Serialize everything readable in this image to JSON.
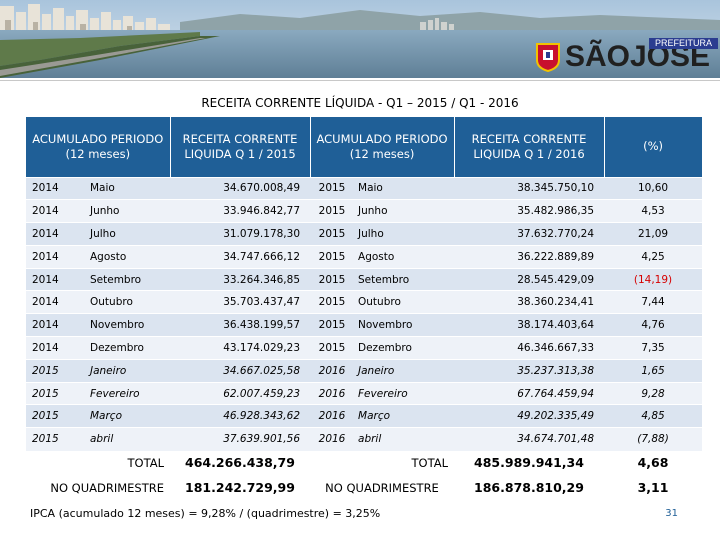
{
  "header": {
    "logo_text": "SÃOJOSÉ",
    "logo_sub": "PREFEITURA"
  },
  "title": "RECEITA CORRENTE LÍQUIDA - Q1 – 2015 / Q1 - 2016",
  "table": {
    "headers": {
      "acc1": "ACUMULADO PERIODO (12 meses)",
      "rcl1": "RECEITA CORRENTE LIQUIDA Q 1 / 2015",
      "acc2": "ACUMULADO PERIODO (12 meses)",
      "rcl2": "RECEITA CORRENTE LIQUIDA Q 1 / 2016",
      "pct": "(%)"
    },
    "rows": [
      {
        "y1": "2014",
        "m1": "Maio",
        "v1": "34.670.008,49",
        "y2": "2015",
        "m2": "Maio",
        "v2": "38.345.750,10",
        "pct": "10,60"
      },
      {
        "y1": "2014",
        "m1": "Junho",
        "v1": "33.946.842,77",
        "y2": "2015",
        "m2": "Junho",
        "v2": "35.482.986,35",
        "pct": "4,53"
      },
      {
        "y1": "2014",
        "m1": "Julho",
        "v1": "31.079.178,30",
        "y2": "2015",
        "m2": "Julho",
        "v2": "37.632.770,24",
        "pct": "21,09"
      },
      {
        "y1": "2014",
        "m1": "Agosto",
        "v1": "34.747.666,12",
        "y2": "2015",
        "m2": "Agosto",
        "v2": "36.222.889,89",
        "pct": "4,25"
      },
      {
        "y1": "2014",
        "m1": "Setembro",
        "v1": "33.264.346,85",
        "y2": "2015",
        "m2": "Setembro",
        "v2": "28.545.429,09",
        "pct": "(14,19)"
      },
      {
        "y1": "2014",
        "m1": "Outubro",
        "v1": "35.703.437,47",
        "y2": "2015",
        "m2": "Outubro",
        "v2": "38.360.234,41",
        "pct": "7,44"
      },
      {
        "y1": "2014",
        "m1": "Novembro",
        "v1": "36.438.199,57",
        "y2": "2015",
        "m2": "Novembro",
        "v2": "38.174.403,64",
        "pct": "4,76"
      },
      {
        "y1": "2014",
        "m1": "Dezembro",
        "v1": "43.174.029,23",
        "y2": "2015",
        "m2": "Dezembro",
        "v2": "46.346.667,33",
        "pct": "7,35"
      },
      {
        "y1": "2015",
        "m1": "Janeiro",
        "v1": "34.667.025,58",
        "y2": "2016",
        "m2": "Janeiro",
        "v2": "35.237.313,38",
        "pct": "1,65"
      },
      {
        "y1": "2015",
        "m1": "Fevereiro",
        "v1": "62.007.459,23",
        "y2": "2016",
        "m2": "Fevereiro",
        "v2": "67.764.459,94",
        "pct": "9,28"
      },
      {
        "y1": "2015",
        "m1": "Março",
        "v1": "46.928.343,62",
        "y2": "2016",
        "m2": "Março",
        "v2": "49.202.335,49",
        "pct": "4,85"
      },
      {
        "y1": "2015",
        "m1": "abril",
        "v1": "37.639.901,56",
        "y2": "2016",
        "m2": "abril",
        "v2": "34.674.701,48",
        "pct": "(7,88)"
      }
    ]
  },
  "totals": {
    "total_label": "TOTAL",
    "total_v1": "464.266.438,79",
    "total_label2": "TOTAL",
    "total_v2": "485.989.941,34",
    "total_pct": "4,68",
    "quad_label": "NO QUADRIMESTRE",
    "quad_v1": "181.242.729,99",
    "quad_label2": "NO QUADRIMESTRE",
    "quad_v2": "186.878.810,29",
    "quad_pct": "3,11"
  },
  "footnote": "IPCA (acumulado 12 meses) = 9,28% / (quadrimestre) = 3,25%",
  "page_number": "31",
  "colors": {
    "header_blue": "#1f5f97",
    "row_dark": "#dbe4f0",
    "row_light": "#eef2f8",
    "negative": "#d60000"
  }
}
